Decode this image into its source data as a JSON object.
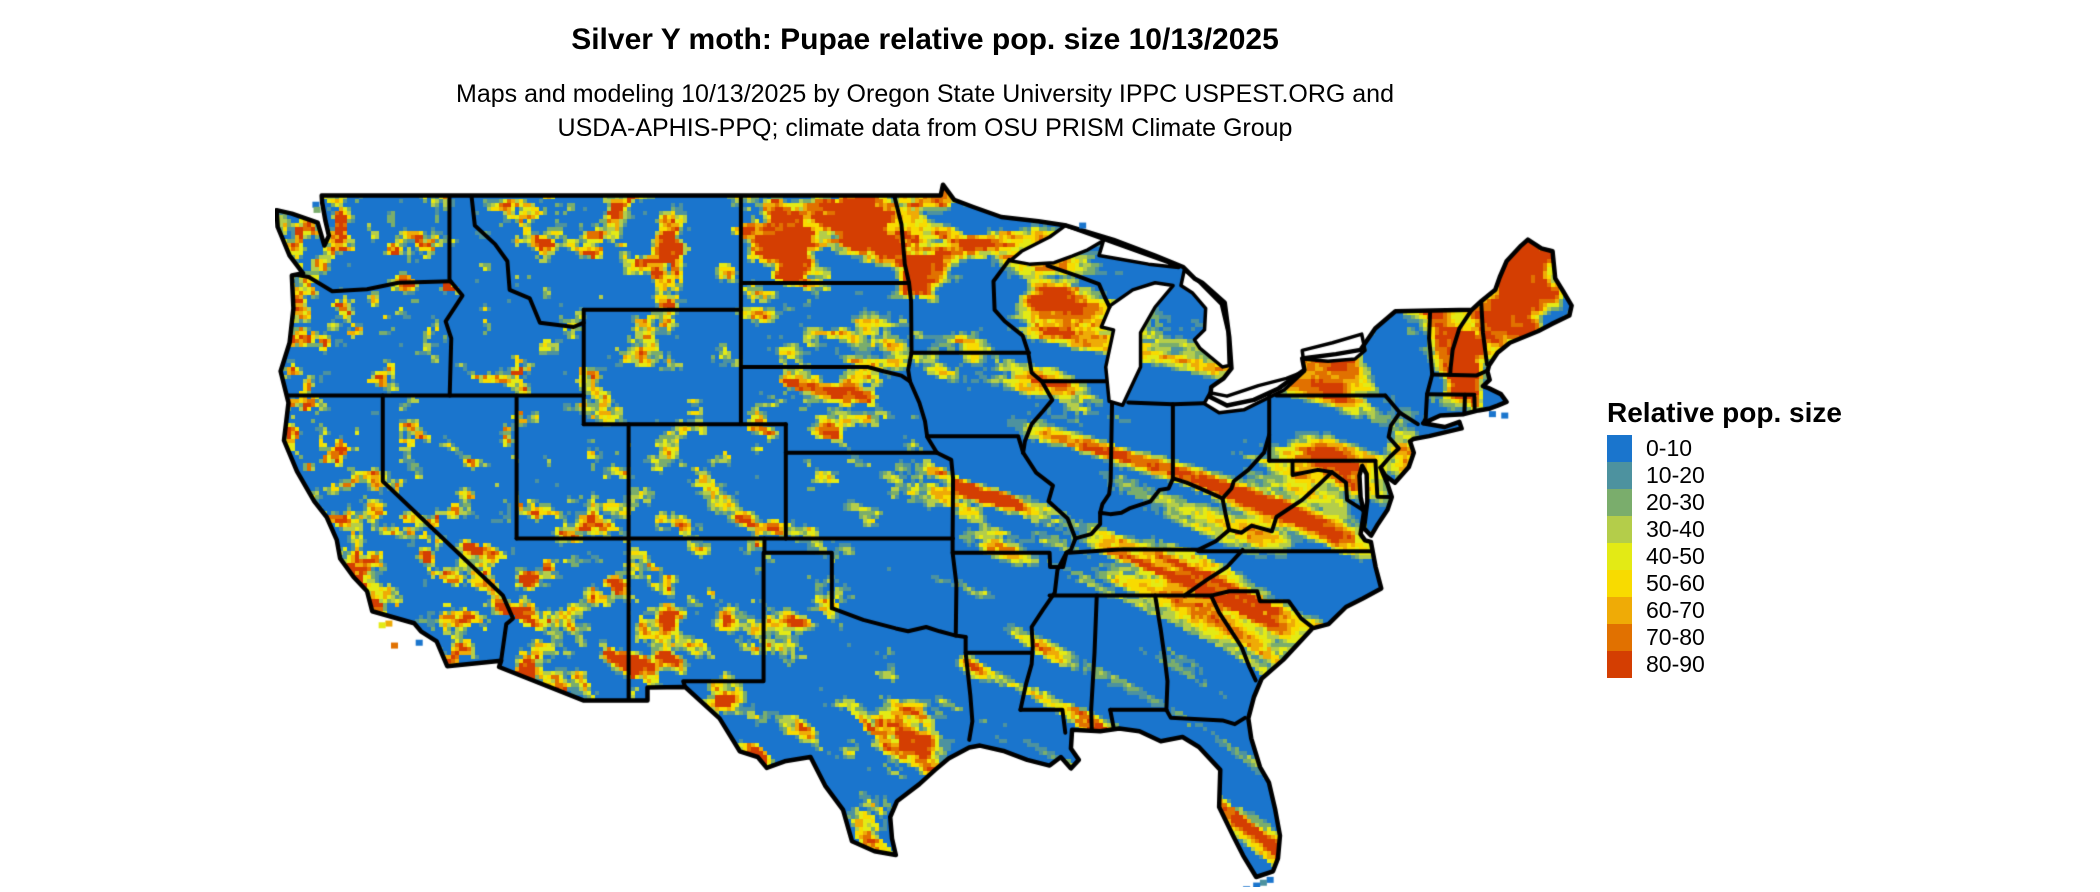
{
  "title": "Silver Y moth: Pupae relative pop. size 10/13/2025",
  "subtitle": {
    "line1": "Maps and modeling 10/13/2025 by Oregon State University IPPC USPEST.ORG and",
    "line2": "USDA-APHIS-PPQ; climate data from OSU PRISM Climate Group"
  },
  "map": {
    "region": "Continental United States",
    "type": "raster choropleth of relative population size",
    "background_color": "#ffffff",
    "border_color": "#000000",
    "base_color": "#1a75cd"
  },
  "legend": {
    "title": "Relative pop. size",
    "entries": [
      {
        "label": "0-10",
        "color": "#1a75cd"
      },
      {
        "label": "10-20",
        "color": "#4d929f"
      },
      {
        "label": "20-30",
        "color": "#7aad6c"
      },
      {
        "label": "30-40",
        "color": "#b4cd4a"
      },
      {
        "label": "40-50",
        "color": "#e3ea15"
      },
      {
        "label": "50-60",
        "color": "#f8db00"
      },
      {
        "label": "60-70",
        "color": "#efab06"
      },
      {
        "label": "70-80",
        "color": "#e17100"
      },
      {
        "label": "80-90",
        "color": "#d43e02"
      }
    ]
  }
}
